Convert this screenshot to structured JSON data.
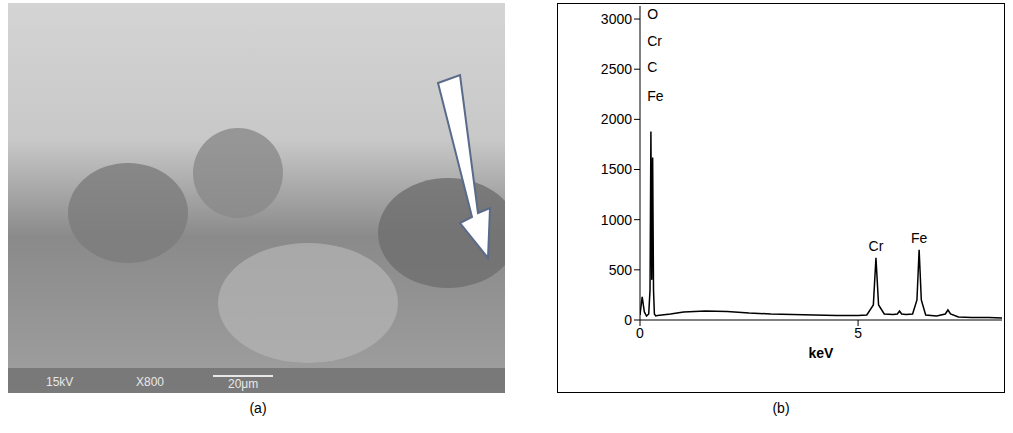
{
  "panel_a": {
    "label": "(a)",
    "micrograph_texts": {
      "voltage": "15kV",
      "magnification": "X800",
      "scale_bar": "20μm"
    }
  },
  "chart_data": {
    "type": "line",
    "label": "(b)",
    "x_label": "keV",
    "x": [
      0,
      0.05,
      0.1,
      0.15,
      0.2,
      0.23,
      0.25,
      0.27,
      0.29,
      0.31,
      0.33,
      0.36,
      0.4,
      0.5,
      0.7,
      1.0,
      1.5,
      2,
      2.5,
      3,
      3.5,
      4,
      4.5,
      5,
      5.2,
      5.35,
      5.41,
      5.47,
      5.6,
      5.8,
      5.9,
      5.95,
      6.0,
      6.1,
      6.25,
      6.35,
      6.4,
      6.45,
      6.55,
      6.8,
      7.0,
      7.06,
      7.12,
      7.3,
      7.6,
      8.0,
      8.3
    ],
    "values": [
      50,
      230,
      80,
      40,
      60,
      300,
      1880,
      400,
      1620,
      300,
      60,
      40,
      45,
      50,
      60,
      80,
      90,
      85,
      70,
      60,
      55,
      50,
      45,
      45,
      50,
      150,
      620,
      150,
      60,
      55,
      60,
      90,
      60,
      55,
      60,
      200,
      700,
      200,
      50,
      40,
      60,
      100,
      60,
      30,
      25,
      25,
      20
    ],
    "color": "#000000",
    "xlim": [
      0,
      8.3
    ],
    "xticks": [
      0,
      5
    ],
    "ylim": [
      0,
      3130
    ],
    "yticks": [
      0,
      500,
      1000,
      1500,
      2000,
      2500,
      3000
    ],
    "annotations": [
      {
        "text": "O",
        "x": 0.05,
        "y": 3050
      },
      {
        "text": "Cr",
        "x": 0.05,
        "y": 2780
      },
      {
        "text": "C",
        "x": 0.05,
        "y": 2520
      },
      {
        "text": "Fe",
        "x": 0.05,
        "y": 2230
      },
      {
        "text": "Cr",
        "x": 5.41,
        "y": 640
      },
      {
        "text": "Fe",
        "x": 6.4,
        "y": 720
      }
    ]
  }
}
